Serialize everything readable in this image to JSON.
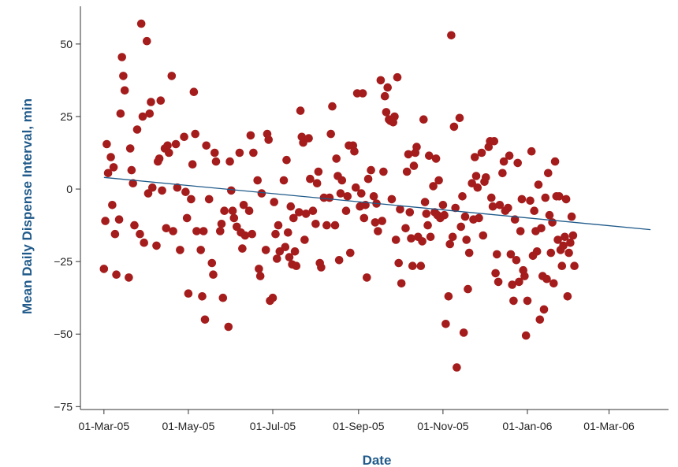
{
  "chart_data": {
    "type": "scatter",
    "xlabel": "Date",
    "ylabel": "Mean Daily Dispense Interval, min",
    "x_ticks": [
      "2005-03-01",
      "2005-05-01",
      "2005-07-01",
      "2005-09-01",
      "2005-11-01",
      "2006-01-01",
      "2006-03-01"
    ],
    "x_tick_labels": [
      "01-Mar-05",
      "01-May-05",
      "01-Jul-05",
      "01-Sep-05",
      "01-Nov-05",
      "01-Jan-06",
      "01-Mar-06"
    ],
    "xlim": [
      "2005-02-12",
      "2006-04-13"
    ],
    "y_ticks": [
      50,
      25,
      0,
      -25,
      -50,
      -75
    ],
    "y_tick_labels": [
      "50",
      "25",
      "0",
      "−25",
      "−50",
      "−75"
    ],
    "ylim": [
      -76,
      63
    ],
    "grid": false,
    "colors": {
      "points": "#a51c1c",
      "trend": "#1f5a8a",
      "axis_title": "#1f5a8a",
      "axis": "#333333"
    },
    "trend_line": {
      "x": [
        "2005-03-01",
        "2006-03-31"
      ],
      "y": [
        4,
        -14
      ]
    },
    "series": [
      {
        "points": [
          [
            "2005-03-01",
            -27.5
          ],
          [
            "2005-03-02",
            -11
          ],
          [
            "2005-03-03",
            15.5
          ],
          [
            "2005-03-04",
            5.5
          ],
          [
            "2005-03-06",
            11
          ],
          [
            "2005-03-07",
            -5.5
          ],
          [
            "2005-03-08",
            7.5
          ],
          [
            "2005-03-09",
            -15.5
          ],
          [
            "2005-03-10",
            -29.5
          ],
          [
            "2005-03-12",
            -10.5
          ],
          [
            "2005-03-13",
            26
          ],
          [
            "2005-03-14",
            45.5
          ],
          [
            "2005-03-15",
            39
          ],
          [
            "2005-03-16",
            34
          ],
          [
            "2005-03-19",
            -30.5
          ],
          [
            "2005-03-20",
            14
          ],
          [
            "2005-03-21",
            6.5
          ],
          [
            "2005-03-22",
            2
          ],
          [
            "2005-03-23",
            -12.5
          ],
          [
            "2005-03-25",
            20.5
          ],
          [
            "2005-03-27",
            -15.5
          ],
          [
            "2005-03-28",
            57
          ],
          [
            "2005-03-29",
            25
          ],
          [
            "2005-03-30",
            -18.5
          ],
          [
            "2005-04-01",
            51
          ],
          [
            "2005-04-02",
            -1.5
          ],
          [
            "2005-04-03",
            26
          ],
          [
            "2005-04-04",
            30
          ],
          [
            "2005-04-05",
            0.5
          ],
          [
            "2005-04-08",
            -19.5
          ],
          [
            "2005-04-09",
            9.5
          ],
          [
            "2005-04-10",
            10.5
          ],
          [
            "2005-04-11",
            30.5
          ],
          [
            "2005-04-12",
            -0.5
          ],
          [
            "2005-04-14",
            14
          ],
          [
            "2005-04-15",
            -13.5
          ],
          [
            "2005-04-16",
            15
          ],
          [
            "2005-04-17",
            12.5
          ],
          [
            "2005-04-19",
            39
          ],
          [
            "2005-04-20",
            -14.5
          ],
          [
            "2005-04-22",
            15.5
          ],
          [
            "2005-04-23",
            0.5
          ],
          [
            "2005-04-25",
            -21
          ],
          [
            "2005-04-28",
            18
          ],
          [
            "2005-04-29",
            -1
          ],
          [
            "2005-04-30",
            -10
          ],
          [
            "2005-05-01",
            -36
          ],
          [
            "2005-05-03",
            -3.5
          ],
          [
            "2005-05-04",
            8.5
          ],
          [
            "2005-05-05",
            33.5
          ],
          [
            "2005-05-06",
            19
          ],
          [
            "2005-05-07",
            -14.5
          ],
          [
            "2005-05-10",
            -21
          ],
          [
            "2005-05-11",
            -37
          ],
          [
            "2005-05-12",
            -14.5
          ],
          [
            "2005-05-13",
            -45
          ],
          [
            "2005-05-14",
            15
          ],
          [
            "2005-05-16",
            -3.5
          ],
          [
            "2005-05-18",
            -25.5
          ],
          [
            "2005-05-19",
            -29.5
          ],
          [
            "2005-05-20",
            12.5
          ],
          [
            "2005-05-21",
            9.5
          ],
          [
            "2005-05-24",
            -14.5
          ],
          [
            "2005-05-25",
            -12
          ],
          [
            "2005-05-26",
            -37.5
          ],
          [
            "2005-05-27",
            -7.5
          ],
          [
            "2005-05-30",
            -47.5
          ],
          [
            "2005-05-31",
            9.5
          ],
          [
            "2005-06-01",
            -0.5
          ],
          [
            "2005-06-02",
            -7.5
          ],
          [
            "2005-06-03",
            -10
          ],
          [
            "2005-06-05",
            -13
          ],
          [
            "2005-06-07",
            12.5
          ],
          [
            "2005-06-08",
            -15
          ],
          [
            "2005-06-09",
            -20.5
          ],
          [
            "2005-06-10",
            -5.5
          ],
          [
            "2005-06-11",
            -16
          ],
          [
            "2005-06-14",
            -7.5
          ],
          [
            "2005-06-15",
            18.5
          ],
          [
            "2005-06-16",
            -15.5
          ],
          [
            "2005-06-17",
            12.5
          ],
          [
            "2005-06-20",
            3
          ],
          [
            "2005-06-21",
            -27.5
          ],
          [
            "2005-06-22",
            -30
          ],
          [
            "2005-06-23",
            -1.5
          ],
          [
            "2005-06-26",
            -21
          ],
          [
            "2005-06-27",
            19
          ],
          [
            "2005-06-28",
            17
          ],
          [
            "2005-06-29",
            -38.5
          ],
          [
            "2005-07-01",
            -37.5
          ],
          [
            "2005-07-02",
            -4.5
          ],
          [
            "2005-07-03",
            -15.5
          ],
          [
            "2005-07-04",
            -24
          ],
          [
            "2005-07-05",
            -12.5
          ],
          [
            "2005-07-06",
            -21.5
          ],
          [
            "2005-07-09",
            3
          ],
          [
            "2005-07-10",
            -20
          ],
          [
            "2005-07-11",
            10
          ],
          [
            "2005-07-12",
            -15
          ],
          [
            "2005-07-13",
            -23.5
          ],
          [
            "2005-07-14",
            -6
          ],
          [
            "2005-07-15",
            -26
          ],
          [
            "2005-07-16",
            -10
          ],
          [
            "2005-07-17",
            -21.5
          ],
          [
            "2005-07-18",
            -26.5
          ],
          [
            "2005-07-20",
            -8
          ],
          [
            "2005-07-21",
            27
          ],
          [
            "2005-07-22",
            18
          ],
          [
            "2005-07-23",
            16
          ],
          [
            "2005-07-24",
            -17.5
          ],
          [
            "2005-07-25",
            -8.5
          ],
          [
            "2005-07-27",
            17.5
          ],
          [
            "2005-07-28",
            3.5
          ],
          [
            "2005-07-30",
            -7.5
          ],
          [
            "2005-08-01",
            -12
          ],
          [
            "2005-08-02",
            2
          ],
          [
            "2005-08-03",
            6
          ],
          [
            "2005-08-04",
            -25.5
          ],
          [
            "2005-08-05",
            -27
          ],
          [
            "2005-08-07",
            -3
          ],
          [
            "2005-08-09",
            -12.5
          ],
          [
            "2005-08-11",
            -3
          ],
          [
            "2005-08-12",
            19
          ],
          [
            "2005-08-13",
            28.5
          ],
          [
            "2005-08-15",
            -12.5
          ],
          [
            "2005-08-16",
            10.5
          ],
          [
            "2005-08-17",
            4.5
          ],
          [
            "2005-08-18",
            -24.5
          ],
          [
            "2005-08-19",
            -1.5
          ],
          [
            "2005-08-20",
            3
          ],
          [
            "2005-08-23",
            -7.5
          ],
          [
            "2005-08-24",
            -2.5
          ],
          [
            "2005-08-25",
            15
          ],
          [
            "2005-08-26",
            -22
          ],
          [
            "2005-08-28",
            15
          ],
          [
            "2005-08-29",
            13
          ],
          [
            "2005-08-30",
            0.5
          ],
          [
            "2005-08-31",
            33
          ],
          [
            "2005-09-02",
            -6
          ],
          [
            "2005-09-03",
            -1.5
          ],
          [
            "2005-09-04",
            33
          ],
          [
            "2005-09-05",
            -10
          ],
          [
            "2005-09-06",
            -5.5
          ],
          [
            "2005-09-07",
            -30.5
          ],
          [
            "2005-09-08",
            3.5
          ],
          [
            "2005-09-10",
            6.5
          ],
          [
            "2005-09-12",
            -2.5
          ],
          [
            "2005-09-13",
            -11.5
          ],
          [
            "2005-09-14",
            -5
          ],
          [
            "2005-09-15",
            -14.5
          ],
          [
            "2005-09-17",
            37.5
          ],
          [
            "2005-09-18",
            -11
          ],
          [
            "2005-09-19",
            6
          ],
          [
            "2005-09-20",
            32
          ],
          [
            "2005-09-21",
            26.5
          ],
          [
            "2005-09-22",
            35
          ],
          [
            "2005-09-23",
            24
          ],
          [
            "2005-09-24",
            23.5
          ],
          [
            "2005-09-25",
            -3.5
          ],
          [
            "2005-09-26",
            23
          ],
          [
            "2005-09-27",
            25
          ],
          [
            "2005-09-28",
            -17.5
          ],
          [
            "2005-09-29",
            38.5
          ],
          [
            "2005-09-30",
            -25.5
          ],
          [
            "2005-10-01",
            -7
          ],
          [
            "2005-10-02",
            -32.5
          ],
          [
            "2005-10-05",
            -13.5
          ],
          [
            "2005-10-06",
            6
          ],
          [
            "2005-10-07",
            12
          ],
          [
            "2005-10-08",
            -8
          ],
          [
            "2005-10-09",
            -17
          ],
          [
            "2005-10-10",
            -26.5
          ],
          [
            "2005-10-11",
            8
          ],
          [
            "2005-10-12",
            12.5
          ],
          [
            "2005-10-13",
            14.5
          ],
          [
            "2005-10-14",
            -16.5
          ],
          [
            "2005-10-16",
            -26.5
          ],
          [
            "2005-10-17",
            -18
          ],
          [
            "2005-10-18",
            24
          ],
          [
            "2005-10-19",
            -4.5
          ],
          [
            "2005-10-20",
            -8.5
          ],
          [
            "2005-10-21",
            -12.5
          ],
          [
            "2005-10-22",
            11.5
          ],
          [
            "2005-10-23",
            -16.5
          ],
          [
            "2005-10-25",
            1
          ],
          [
            "2005-10-26",
            -8
          ],
          [
            "2005-10-27",
            10.5
          ],
          [
            "2005-10-28",
            -9
          ],
          [
            "2005-10-29",
            3
          ],
          [
            "2005-10-30",
            -10
          ],
          [
            "2005-11-01",
            -5.5
          ],
          [
            "2005-11-02",
            -9
          ],
          [
            "2005-11-03",
            -46.5
          ],
          [
            "2005-11-05",
            -37
          ],
          [
            "2005-11-06",
            -19
          ],
          [
            "2005-11-07",
            53
          ],
          [
            "2005-11-08",
            -16.5
          ],
          [
            "2005-11-09",
            21.5
          ],
          [
            "2005-11-10",
            -6.5
          ],
          [
            "2005-11-11",
            -61.5
          ],
          [
            "2005-11-13",
            24.5
          ],
          [
            "2005-11-14",
            -13
          ],
          [
            "2005-11-15",
            -2.5
          ],
          [
            "2005-11-16",
            -49.5
          ],
          [
            "2005-11-17",
            -9.5
          ],
          [
            "2005-11-18",
            -17.5
          ],
          [
            "2005-11-19",
            -34.5
          ],
          [
            "2005-11-20",
            -22
          ],
          [
            "2005-11-22",
            2
          ],
          [
            "2005-11-23",
            -10.5
          ],
          [
            "2005-11-24",
            11
          ],
          [
            "2005-11-25",
            4.5
          ],
          [
            "2005-11-26",
            0.5
          ],
          [
            "2005-11-27",
            -10
          ],
          [
            "2005-11-29",
            12.5
          ],
          [
            "2005-11-30",
            -16
          ],
          [
            "2005-12-01",
            2.5
          ],
          [
            "2005-12-02",
            4
          ],
          [
            "2005-12-04",
            14.5
          ],
          [
            "2005-12-05",
            16.5
          ],
          [
            "2005-12-06",
            -3
          ],
          [
            "2005-12-07",
            -6
          ],
          [
            "2005-12-08",
            16.5
          ],
          [
            "2005-12-09",
            -29
          ],
          [
            "2005-12-10",
            -22.5
          ],
          [
            "2005-12-11",
            -32
          ],
          [
            "2005-12-12",
            -5.5
          ],
          [
            "2005-12-14",
            5.5
          ],
          [
            "2005-12-15",
            9.5
          ],
          [
            "2005-12-16",
            -7.5
          ],
          [
            "2005-12-18",
            -6.5
          ],
          [
            "2005-12-19",
            11.5
          ],
          [
            "2005-12-20",
            -22.5
          ],
          [
            "2005-12-21",
            -33
          ],
          [
            "2005-12-22",
            -38.5
          ],
          [
            "2005-12-23",
            -10.5
          ],
          [
            "2005-12-24",
            -24.5
          ],
          [
            "2005-12-25",
            9
          ],
          [
            "2005-12-26",
            -32
          ],
          [
            "2005-12-27",
            -14.5
          ],
          [
            "2005-12-28",
            -3.5
          ],
          [
            "2005-12-29",
            -28
          ],
          [
            "2005-12-30",
            -30
          ],
          [
            "2005-12-31",
            -50.5
          ],
          [
            "2006-01-01",
            -38.5
          ],
          [
            "2006-01-03",
            -4
          ],
          [
            "2006-01-04",
            13
          ],
          [
            "2006-01-05",
            -23
          ],
          [
            "2006-01-06",
            -7.5
          ],
          [
            "2006-01-07",
            -14.5
          ],
          [
            "2006-01-08",
            -21.5
          ],
          [
            "2006-01-09",
            1.5
          ],
          [
            "2006-01-10",
            -45
          ],
          [
            "2006-01-11",
            -13.5
          ],
          [
            "2006-01-12",
            -30
          ],
          [
            "2006-01-13",
            -41.5
          ],
          [
            "2006-01-14",
            -3
          ],
          [
            "2006-01-15",
            -31
          ],
          [
            "2006-01-16",
            5.5
          ],
          [
            "2006-01-17",
            -9
          ],
          [
            "2006-01-18",
            -22
          ],
          [
            "2006-01-19",
            -11.5
          ],
          [
            "2006-01-20",
            -32.5
          ],
          [
            "2006-01-21",
            9.5
          ],
          [
            "2006-01-22",
            -2.5
          ],
          [
            "2006-01-23",
            -17.5
          ],
          [
            "2006-01-24",
            -2.5
          ],
          [
            "2006-01-25",
            -21
          ],
          [
            "2006-01-26",
            -26.5
          ],
          [
            "2006-01-27",
            -19.5
          ],
          [
            "2006-01-28",
            -16.5
          ],
          [
            "2006-01-29",
            -3.5
          ],
          [
            "2006-01-30",
            -37
          ],
          [
            "2006-01-31",
            -22
          ],
          [
            "2006-02-01",
            -18.5
          ],
          [
            "2006-02-02",
            -9.5
          ],
          [
            "2006-02-03",
            -16
          ],
          [
            "2006-02-04",
            -26.5
          ]
        ]
      }
    ]
  }
}
